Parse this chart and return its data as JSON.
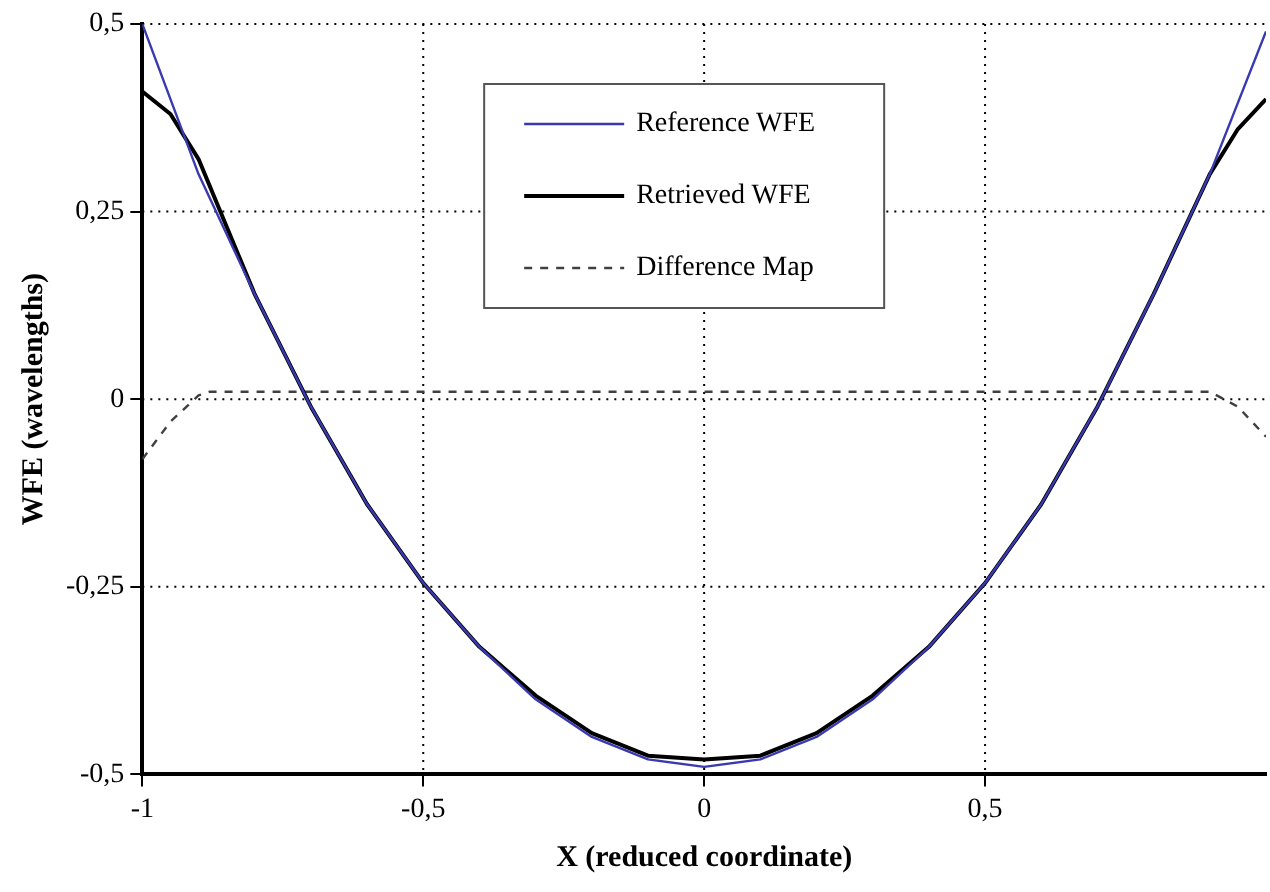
{
  "chart_data": {
    "type": "line",
    "xlabel": "X (reduced coordinate)",
    "ylabel": "WFE (wavelengths)",
    "xlim": [
      -1,
      1
    ],
    "ylim": [
      -0.5,
      0.5
    ],
    "xticks": [
      -1,
      {
        "value": -0.5,
        "label": "-0,5"
      },
      0,
      {
        "value": 0.5,
        "label": "0,5"
      }
    ],
    "yticks": [
      {
        "value": -0.5,
        "label": "-0,5"
      },
      {
        "value": -0.25,
        "label": "-0,25"
      },
      0,
      {
        "value": 0.25,
        "label": "0,25"
      },
      {
        "value": 0.5,
        "label": "0,5"
      }
    ],
    "grid": true,
    "legend": "top",
    "marker": "none",
    "series": [
      {
        "name": "Reference WFE",
        "color": "#3a3ab0",
        "line_style": "solid",
        "x": [
          -1,
          -0.9,
          -0.8,
          -0.7,
          -0.6,
          -0.5,
          -0.4,
          -0.3,
          -0.2,
          -0.1,
          0,
          0.1,
          0.2,
          0.3,
          0.4,
          0.5,
          0.6,
          0.7,
          0.8,
          0.9,
          1
        ],
        "values": [
          0.5,
          0.3,
          0.14,
          -0.01,
          -0.14,
          -0.245,
          -0.33,
          -0.4,
          -0.45,
          -0.48,
          -0.49,
          -0.48,
          -0.45,
          -0.4,
          -0.33,
          -0.245,
          -0.14,
          -0.01,
          0.14,
          0.3,
          0.49
        ]
      },
      {
        "name": "Retrieved WFE",
        "color": "#000000",
        "line_style": "solid",
        "x": [
          -1,
          -0.95,
          -0.9,
          -0.8,
          -0.7,
          -0.6,
          -0.5,
          -0.4,
          -0.3,
          -0.2,
          -0.1,
          0,
          0.1,
          0.2,
          0.3,
          0.4,
          0.5,
          0.6,
          0.7,
          0.8,
          0.9,
          0.95,
          1
        ],
        "values": [
          0.41,
          0.38,
          0.32,
          0.14,
          -0.01,
          -0.14,
          -0.245,
          -0.33,
          -0.395,
          -0.445,
          -0.475,
          -0.48,
          -0.475,
          -0.445,
          -0.395,
          -0.33,
          -0.245,
          -0.14,
          -0.01,
          0.14,
          0.3,
          0.36,
          0.4
        ]
      },
      {
        "name": "Difference Map",
        "color": "#404040",
        "line_style": "dashed",
        "x": [
          -1,
          -0.95,
          -0.9,
          -0.88,
          0,
          0.9,
          0.95,
          1
        ],
        "values": [
          -0.08,
          -0.03,
          0.005,
          0.01,
          0.01,
          0.01,
          -0.01,
          -0.05
        ]
      }
    ]
  }
}
